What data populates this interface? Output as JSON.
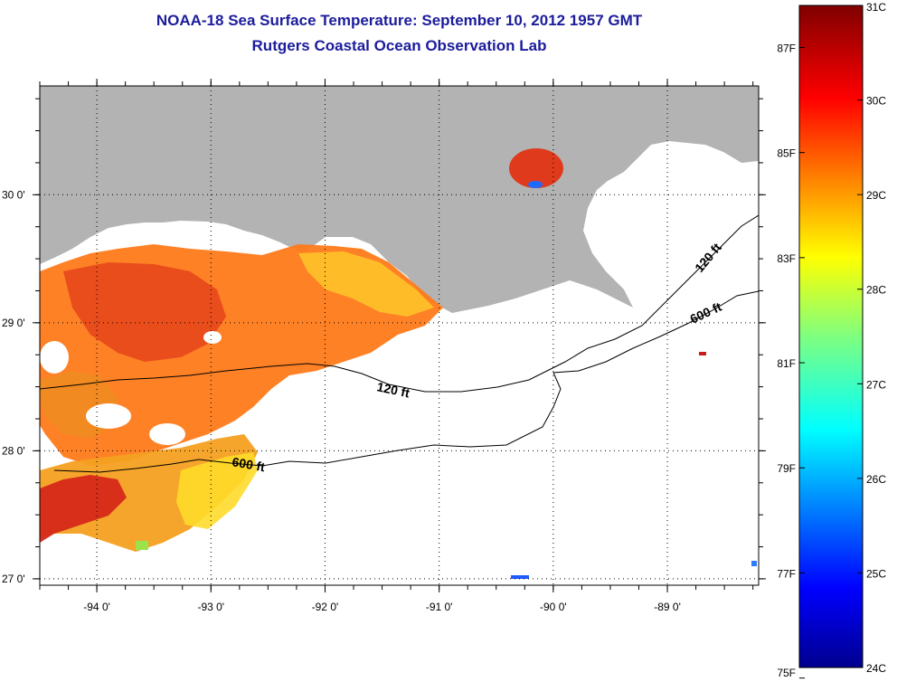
{
  "title": "NOAA-18 Sea Surface Temperature:  September 10, 2012 1957 GMT",
  "subtitle": "Rutgers Coastal Ocean Observation Lab",
  "map": {
    "lon_range": [
      -94.5,
      -88.2
    ],
    "lat_range": [
      26.95,
      30.85
    ],
    "lon_ticks": [
      {
        "value": -94,
        "label": "-94 0'"
      },
      {
        "value": -93,
        "label": "-93 0'"
      },
      {
        "value": -92,
        "label": "-92 0'"
      },
      {
        "value": -91,
        "label": "-91 0'"
      },
      {
        "value": -90,
        "label": "-90 0'"
      },
      {
        "value": -89,
        "label": "-89 0'"
      }
    ],
    "lat_ticks": [
      {
        "value": 30,
        "label": "30 0'"
      },
      {
        "value": 29,
        "label": "29 0'"
      },
      {
        "value": 28,
        "label": "28 0'"
      },
      {
        "value": 27,
        "label": "27 0'"
      }
    ],
    "contour_labels": [
      "120 ft",
      "600 ft",
      "120 ft",
      "600 ft"
    ],
    "land_color": "#b3b3b3",
    "grid_style": "dotted"
  },
  "colorbar": {
    "celsius_range": [
      24,
      31
    ],
    "fahrenheit_labels": [
      "87F",
      "85F",
      "83F",
      "81F",
      "79F",
      "77F",
      "75F"
    ],
    "celsius_labels": [
      "31C",
      "30C",
      "29C",
      "28C",
      "27C",
      "26C",
      "25C",
      "24C"
    ],
    "colormap": "jet"
  }
}
